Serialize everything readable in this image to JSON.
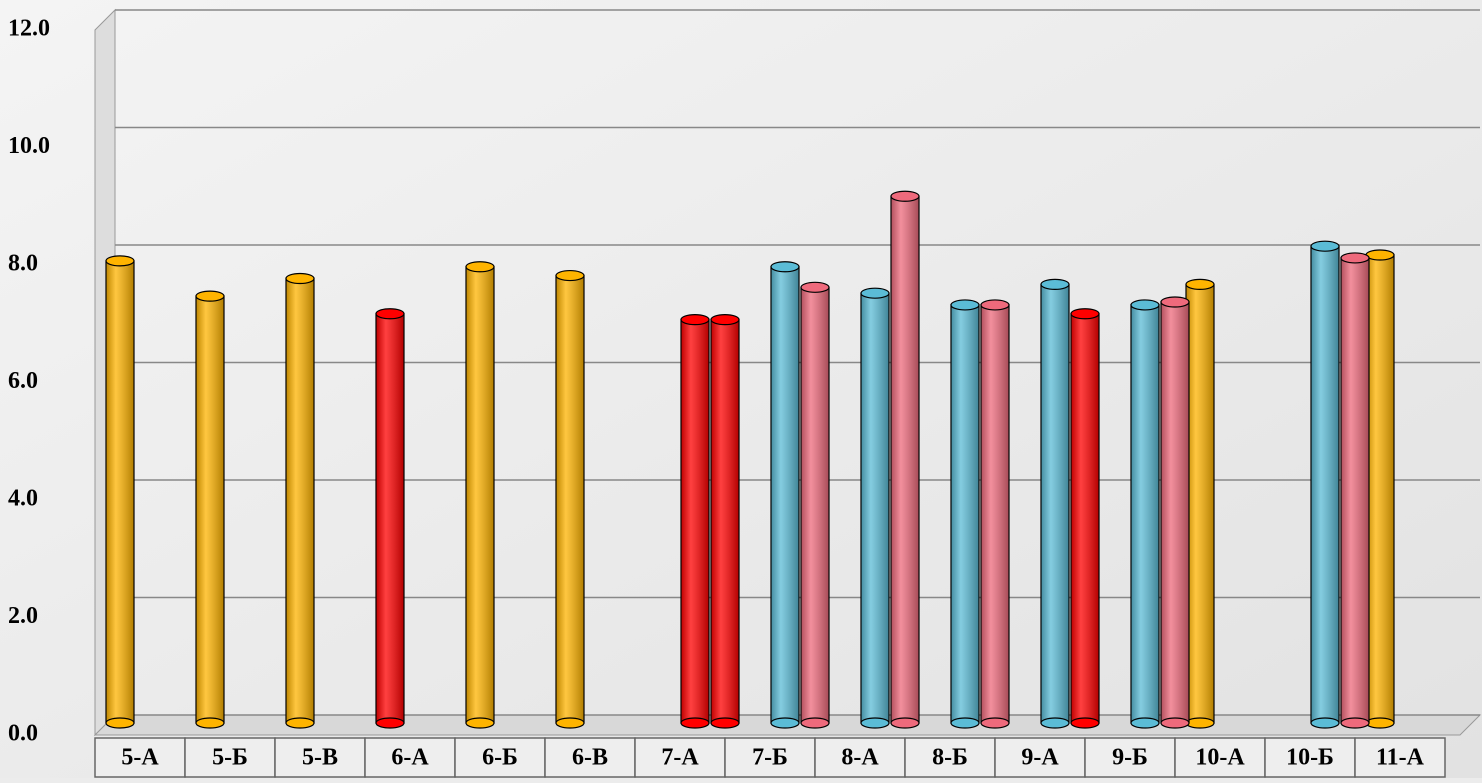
{
  "chart_data": {
    "type": "cylinder-bar",
    "categories": [
      "5-А",
      "5-Б",
      "5-В",
      "6-А",
      "6-Б",
      "6-В",
      "7-А",
      "7-Б",
      "8-А",
      "8-Б",
      "9-А",
      "9-Б",
      "10-А",
      "10-Б",
      "11-А"
    ],
    "series": [
      {
        "values": [
          7.9,
          7.3,
          7.6,
          7.0,
          7.8,
          7.65,
          null,
          null,
          null,
          null,
          null,
          null,
          7.5,
          null,
          8.0
        ],
        "colors": [
          "#ffb400",
          "#ffb400",
          "#ffb400",
          "#ff0000",
          "#ffb400",
          "#ffb400",
          null,
          null,
          null,
          null,
          null,
          null,
          "#ffb400",
          null,
          "#ffb400"
        ]
      },
      {
        "values": [
          null,
          null,
          null,
          null,
          null,
          null,
          6.9,
          7.8,
          7.35,
          7.15,
          7.5,
          7.15,
          null,
          8.15,
          null
        ],
        "colors": [
          null,
          null,
          null,
          null,
          null,
          null,
          "#ff0000",
          "#5bbcd6",
          "#5bbcd6",
          "#5bbcd6",
          "#5bbcd6",
          "#5bbcd6",
          null,
          "#5bbcd6",
          null
        ]
      },
      {
        "values": [
          null,
          null,
          null,
          null,
          null,
          null,
          6.9,
          7.45,
          9.0,
          7.15,
          7.0,
          7.2,
          null,
          7.95,
          null
        ],
        "colors": [
          null,
          null,
          null,
          null,
          null,
          null,
          "#ff0000",
          "#ee6a7c",
          "#ee6a7c",
          "#ee6a7c",
          "#ff0000",
          "#ee6a7c",
          null,
          "#ee6a7c",
          null
        ]
      }
    ],
    "ylim": [
      0,
      12
    ],
    "yticks": [
      {
        "value": 0,
        "label": "0.0"
      },
      {
        "value": 2,
        "label": "2.0"
      },
      {
        "value": 4,
        "label": "4.0"
      },
      {
        "value": 6,
        "label": "6.0"
      },
      {
        "value": 8,
        "label": "8.0"
      },
      {
        "value": 10,
        "label": "10.0"
      },
      {
        "value": 12,
        "label": "12.0"
      }
    ],
    "grid": true
  }
}
